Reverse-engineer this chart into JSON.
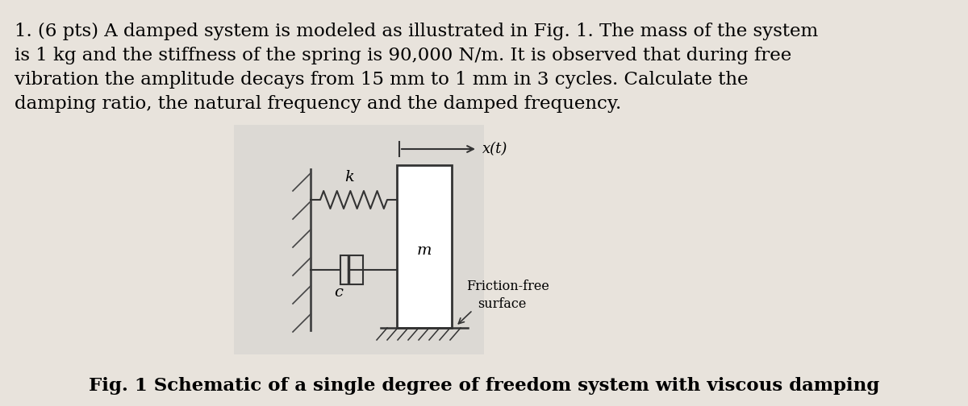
{
  "bg_color": "#e8e3dc",
  "text_paragraph_line1": "1. (6 pts) A damped system is modeled as illustrated in Fig. 1. The mass of the system",
  "text_paragraph_line2": "is 1 kg and the stiffness of the spring is 90,000 N/m. It is observed that during free",
  "text_paragraph_line3": "vibration the amplitude decays from 15 mm to 1 mm in 3 cycles. Calculate the",
  "text_paragraph_line4": "damping ratio, the natural frequency and the damped frequency.",
  "fig_caption": "Fig. 1 Schematic of a single degree of freedom system with viscous damping",
  "xt_label": "x(t)",
  "spring_label": "k",
  "mass_label": "m",
  "damper_label": "c",
  "friction_label_1": "Friction-free",
  "friction_label_2": "surface",
  "text_fontsize": 16.5,
  "caption_fontsize": 16.5,
  "diagram_bg": "#dcd9d4",
  "wall_line_color": "#444444",
  "diagram_line_color": "#333333"
}
